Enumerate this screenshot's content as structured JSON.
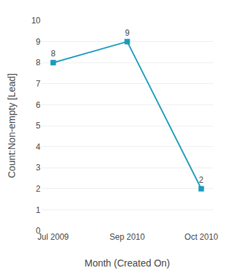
{
  "chart_data": {
    "type": "line",
    "xlabel": "Month (Created On)",
    "ylabel": "Count:Non-empty [Lead]",
    "categories": [
      "Jul 2009",
      "Sep 2010",
      "Oct 2010"
    ],
    "values": [
      8,
      9,
      2
    ],
    "color": "#1a9bbc",
    "marker": "square",
    "ylim": [
      0,
      10
    ],
    "yticks": [
      0,
      1,
      2,
      3,
      4,
      5,
      6,
      7,
      8,
      9,
      10
    ],
    "grid": true,
    "data_labels": true
  }
}
